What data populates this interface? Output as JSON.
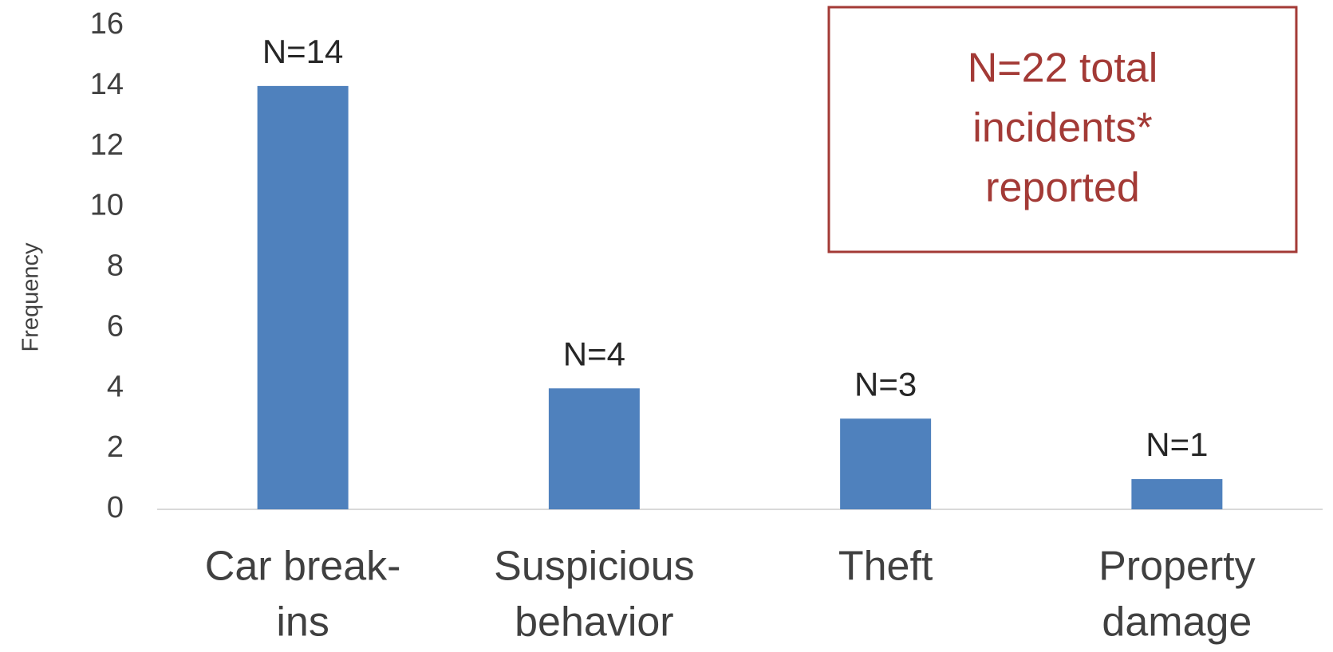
{
  "chart_data": {
    "type": "bar",
    "y_label": "Frequency",
    "categories": [
      [
        "Car break-",
        "ins"
      ],
      [
        "Suspicious",
        "behavior"
      ],
      [
        "Theft"
      ],
      [
        "Property",
        "damage"
      ]
    ],
    "values": [
      14,
      4,
      3,
      1
    ],
    "value_labels": [
      "N=14",
      "N=4",
      "N=3",
      "N=1"
    ],
    "color": "#4f81bd",
    "ylim": [
      0,
      16
    ],
    "yticks": [
      0,
      2,
      4,
      6,
      8,
      10,
      12,
      14,
      16
    ],
    "grid": false,
    "annotation": [
      "N=22 total",
      "incidents*",
      "reported"
    ]
  }
}
